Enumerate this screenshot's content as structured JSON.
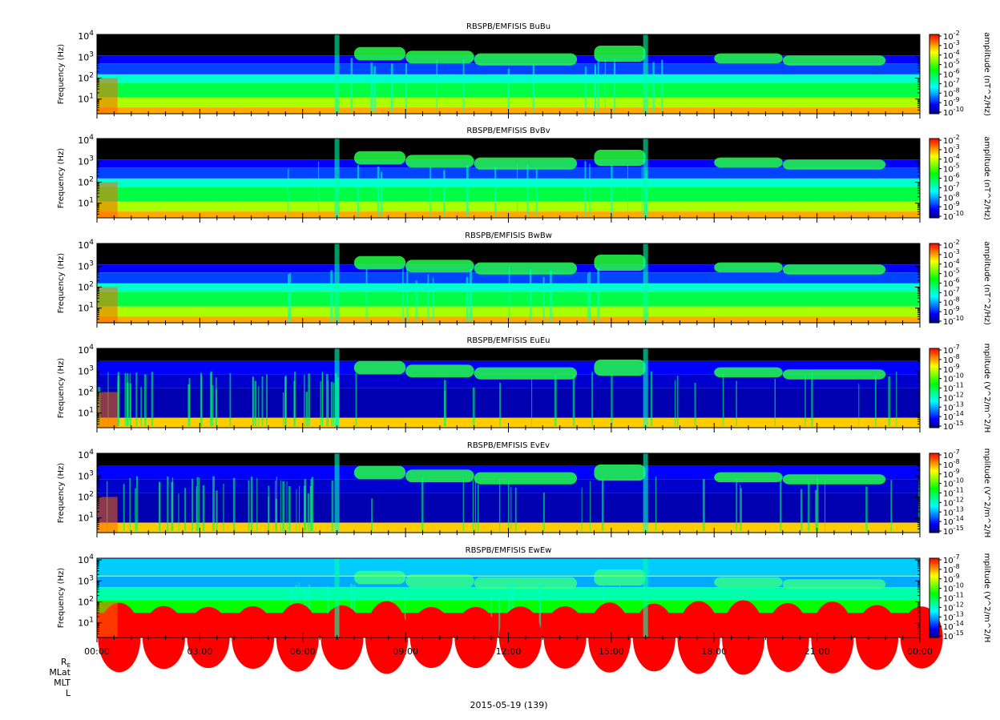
{
  "figure": {
    "date_label": "2015-05-19 (139)",
    "ephemeris_labels": [
      "RE",
      "MLat",
      "MLT",
      "L"
    ]
  },
  "colormap": [
    "#000080",
    "#0000ff",
    "#0080ff",
    "#00ffff",
    "#00ff80",
    "#00ff00",
    "#80ff00",
    "#ffff00",
    "#ff8000",
    "#ff0000"
  ],
  "chart_data": [
    {
      "type": "heatmap",
      "title": "RBSPB/EMFISIS  BuBu",
      "ylabel": "Frequency (Hz)",
      "yscale": "log",
      "ylim": [
        2,
        12000
      ],
      "yticks": [
        "10^1",
        "10^2",
        "10^3",
        "10^4"
      ],
      "xticks": [
        "00:00",
        "03:00",
        "06:00",
        "09:00",
        "12:00",
        "15:00",
        "18:00",
        "21:00",
        "00:00"
      ],
      "colorbar": {
        "label": "amplitude (nT^2/Hz)",
        "scale": "log",
        "ticks": [
          "10^-2",
          "10^-3",
          "10^-4",
          "10^-5",
          "10^-6",
          "10^-7",
          "10^-8",
          "10^-9",
          "10^-10"
        ]
      },
      "kind": "B"
    },
    {
      "type": "heatmap",
      "title": "RBSPB/EMFISIS  BvBv",
      "ylabel": "Frequency (Hz)",
      "yscale": "log",
      "ylim": [
        2,
        12000
      ],
      "yticks": [
        "10^1",
        "10^2",
        "10^3",
        "10^4"
      ],
      "xticks": [
        "00:00",
        "03:00",
        "06:00",
        "09:00",
        "12:00",
        "15:00",
        "18:00",
        "21:00",
        "00:00"
      ],
      "colorbar": {
        "label": "amplitude (nT^2/Hz)",
        "scale": "log",
        "ticks": [
          "10^-2",
          "10^-3",
          "10^-4",
          "10^-5",
          "10^-6",
          "10^-7",
          "10^-8",
          "10^-9",
          "10^-10"
        ]
      },
      "kind": "B"
    },
    {
      "type": "heatmap",
      "title": "RBSPB/EMFISIS  BwBw",
      "ylabel": "Frequency (Hz)",
      "yscale": "log",
      "ylim": [
        2,
        12000
      ],
      "yticks": [
        "10^1",
        "10^2",
        "10^3",
        "10^4"
      ],
      "xticks": [
        "00:00",
        "03:00",
        "06:00",
        "09:00",
        "12:00",
        "15:00",
        "18:00",
        "21:00",
        "00:00"
      ],
      "colorbar": {
        "label": "amplitude (nT^2/Hz)",
        "scale": "log",
        "ticks": [
          "10^-2",
          "10^-3",
          "10^-4",
          "10^-5",
          "10^-6",
          "10^-7",
          "10^-8",
          "10^-9",
          "10^-10"
        ]
      },
      "kind": "B"
    },
    {
      "type": "heatmap",
      "title": "RBSPB/EMFISIS  EuEu",
      "ylabel": "Frequency (Hz)",
      "yscale": "log",
      "ylim": [
        2,
        12000
      ],
      "yticks": [
        "10^1",
        "10^2",
        "10^3",
        "10^4"
      ],
      "xticks": [
        "00:00",
        "03:00",
        "06:00",
        "09:00",
        "12:00",
        "15:00",
        "18:00",
        "21:00",
        "00:00"
      ],
      "colorbar": {
        "label": "mplitude (V^2/m^2/H",
        "scale": "log",
        "ticks": [
          "10^-7",
          "10^-8",
          "10^-9",
          "10^-10",
          "10^-11",
          "10^-12",
          "10^-13",
          "10^-14",
          "10^-15"
        ]
      },
      "kind": "E"
    },
    {
      "type": "heatmap",
      "title": "RBSPB/EMFISIS  EvEv",
      "ylabel": "Frequency (Hz)",
      "yscale": "log",
      "ylim": [
        2,
        12000
      ],
      "yticks": [
        "10^1",
        "10^2",
        "10^3",
        "10^4"
      ],
      "xticks": [
        "00:00",
        "03:00",
        "06:00",
        "09:00",
        "12:00",
        "15:00",
        "18:00",
        "21:00",
        "00:00"
      ],
      "colorbar": {
        "label": "mplitude (V^2/m^2/H",
        "scale": "log",
        "ticks": [
          "10^-7",
          "10^-8",
          "10^-9",
          "10^-10",
          "10^-11",
          "10^-12",
          "10^-13",
          "10^-14",
          "10^-15"
        ]
      },
      "kind": "E"
    },
    {
      "type": "heatmap",
      "title": "RBSPB/EMFISIS  EwEw",
      "ylabel": "Frequency (Hz)",
      "yscale": "log",
      "ylim": [
        2,
        12000
      ],
      "yticks": [
        "10^1",
        "10^2",
        "10^3",
        "10^4"
      ],
      "xticks": [
        "00:00",
        "03:00",
        "06:00",
        "09:00",
        "12:00",
        "15:00",
        "18:00",
        "21:00",
        "00:00"
      ],
      "colorbar": {
        "label": "mplitude (V^2/m^2/H",
        "scale": "log",
        "ticks": [
          "10^-7",
          "10^-8",
          "10^-9",
          "10^-10",
          "10^-11",
          "10^-12",
          "10^-13",
          "10^-14",
          "10^-15"
        ]
      },
      "kind": "Ew"
    }
  ]
}
